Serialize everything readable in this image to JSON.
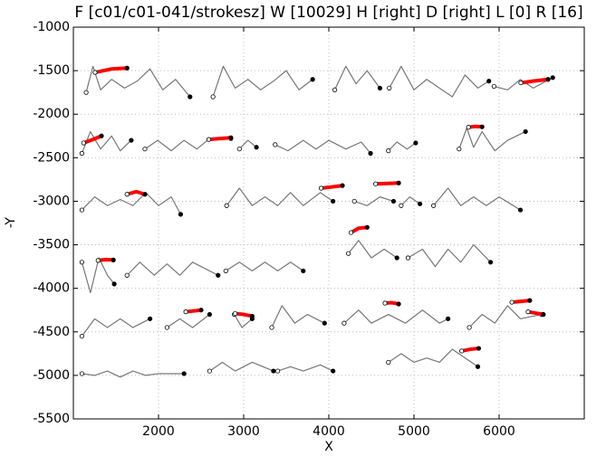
{
  "chart_data": {
    "type": "line",
    "title": "F [c01/c01-041/strokesz] W [10029] H [right] D [right] L [0] R [16]",
    "x_label": "X",
    "y_label": "-Y",
    "xlim": [
      1000,
      7000
    ],
    "ylim": [
      -5500,
      -1000
    ],
    "xticks": [
      2000,
      3000,
      4000,
      5000,
      6000
    ],
    "yticks": [
      -1000,
      -1500,
      -2000,
      -2500,
      -3000,
      -3500,
      -4000,
      -4500,
      -5000,
      -5500
    ],
    "grid": true,
    "stroke_color": "#777777",
    "highlight_color": "#ff0000",
    "strokes": [
      {
        "x": [
          1150,
          1230,
          1320,
          1450,
          1600,
          1750,
          1900,
          2050,
          2200,
          2370
        ],
        "y": [
          -1750,
          -1450,
          -1720,
          -1600,
          -1700,
          -1620,
          -1480,
          -1720,
          -1600,
          -1800
        ]
      },
      {
        "x": [
          2640,
          2760,
          2900,
          3050,
          3200,
          3350,
          3500,
          3650,
          3810
        ],
        "y": [
          -1800,
          -1450,
          -1700,
          -1600,
          -1720,
          -1620,
          -1500,
          -1720,
          -1600
        ]
      },
      {
        "x": [
          4070,
          4200,
          4320,
          4450,
          4600
        ],
        "y": [
          -1720,
          -1450,
          -1650,
          -1500,
          -1700
        ]
      },
      {
        "x": [
          4710,
          4850,
          5000,
          5150,
          5300,
          5450,
          5600,
          5750,
          5880
        ],
        "y": [
          -1700,
          -1450,
          -1720,
          -1600,
          -1700,
          -1800,
          -1550,
          -1700,
          -1620
        ]
      },
      {
        "x": [
          5940,
          6100,
          6250,
          6400,
          6630
        ],
        "y": [
          -1680,
          -1720,
          -1600,
          -1700,
          -1580
        ]
      },
      {
        "x": [
          1100,
          1200,
          1320,
          1450,
          1550,
          1680
        ],
        "y": [
          -2450,
          -2200,
          -2400,
          -2250,
          -2420,
          -2300
        ]
      },
      {
        "x": [
          1840,
          1990,
          2150,
          2300,
          2450,
          2600,
          2850
        ],
        "y": [
          -2400,
          -2300,
          -2420,
          -2300,
          -2400,
          -2280,
          -2280
        ]
      },
      {
        "x": [
          2950,
          3050,
          3150
        ],
        "y": [
          -2400,
          -2300,
          -2380
        ]
      },
      {
        "x": [
          3370,
          3520,
          3700,
          3850,
          4000,
          4200,
          4380,
          4490
        ],
        "y": [
          -2350,
          -2420,
          -2300,
          -2400,
          -2300,
          -2400,
          -2320,
          -2450
        ]
      },
      {
        "x": [
          4700,
          4800,
          4920,
          5020
        ],
        "y": [
          -2420,
          -2320,
          -2400,
          -2330
        ]
      },
      {
        "x": [
          5530,
          5620,
          5700,
          5800,
          5950,
          6100,
          6310
        ],
        "y": [
          -2400,
          -2160,
          -2380,
          -2200,
          -2420,
          -2300,
          -2200
        ]
      },
      {
        "x": [
          1100,
          1250,
          1400,
          1550,
          1700,
          1850,
          2000,
          2150,
          2260
        ],
        "y": [
          -3100,
          -2950,
          -3050,
          -2980,
          -3050,
          -2900,
          -3050,
          -2950,
          -3150
        ]
      },
      {
        "x": [
          2800,
          2950,
          3100,
          3250,
          3400,
          3550,
          3700,
          3900,
          4050
        ],
        "y": [
          -3050,
          -2850,
          -3050,
          -2950,
          -3050,
          -2900,
          -3050,
          -2900,
          -3000
        ]
      },
      {
        "x": [
          4300,
          4450,
          4600,
          4760
        ],
        "y": [
          -3000,
          -3050,
          -2950,
          -3000
        ]
      },
      {
        "x": [
          4850,
          4950,
          5070
        ],
        "y": [
          -3050,
          -2950,
          -3030
        ]
      },
      {
        "x": [
          5230,
          5400,
          5550,
          5700,
          5850,
          6000,
          6250
        ],
        "y": [
          -3050,
          -2850,
          -3050,
          -2950,
          -3050,
          -2950,
          -3100
        ]
      },
      {
        "x": [
          1100,
          1200,
          1300,
          1400,
          1480
        ],
        "y": [
          -3700,
          -4050,
          -3650,
          -3850,
          -3950
        ]
      },
      {
        "x": [
          1630,
          1780,
          1950,
          2100,
          2250,
          2400,
          2600,
          2700
        ],
        "y": [
          -3850,
          -3700,
          -3850,
          -3720,
          -3850,
          -3700,
          -3800,
          -3850
        ]
      },
      {
        "x": [
          2790,
          2950,
          3100,
          3250,
          3400,
          3550,
          3700
        ],
        "y": [
          -3800,
          -3700,
          -3800,
          -3700,
          -3800,
          -3700,
          -3800
        ]
      },
      {
        "x": [
          4230,
          4350,
          4500,
          4650,
          4800
        ],
        "y": [
          -3600,
          -3450,
          -3650,
          -3550,
          -3650
        ]
      },
      {
        "x": [
          4930,
          5100,
          5250,
          5400,
          5550,
          5700,
          5900
        ],
        "y": [
          -3650,
          -3550,
          -3750,
          -3550,
          -3700,
          -3500,
          -3700
        ]
      },
      {
        "x": [
          1100,
          1250,
          1400,
          1550,
          1700,
          1900
        ],
        "y": [
          -4550,
          -4350,
          -4450,
          -4350,
          -4450,
          -4350
        ]
      },
      {
        "x": [
          2100,
          2250,
          2400,
          2600
        ],
        "y": [
          -4450,
          -4350,
          -4450,
          -4300
        ]
      },
      {
        "x": [
          2890,
          2980,
          3100
        ],
        "y": [
          -4300,
          -4450,
          -4350
        ]
      },
      {
        "x": [
          3330,
          3450,
          3600,
          3750,
          3950
        ],
        "y": [
          -4450,
          -4200,
          -4400,
          -4300,
          -4400
        ]
      },
      {
        "x": [
          4180,
          4350,
          4500,
          4700,
          4900,
          5100,
          5300,
          5400
        ],
        "y": [
          -4400,
          -4250,
          -4400,
          -4300,
          -4400,
          -4250,
          -4400,
          -4350
        ]
      },
      {
        "x": [
          5650,
          5800,
          5950,
          6100,
          6250,
          6500
        ],
        "y": [
          -4450,
          -4300,
          -4400,
          -4200,
          -4350,
          -4300
        ]
      },
      {
        "x": [
          1100,
          1250,
          1400,
          1550,
          1700,
          1850,
          2000,
          2300
        ],
        "y": [
          -4980,
          -5000,
          -4950,
          -5020,
          -4950,
          -5000,
          -4980,
          -4980
        ]
      },
      {
        "x": [
          2600,
          2750,
          2900,
          3100,
          3350
        ],
        "y": [
          -4950,
          -4850,
          -4950,
          -4850,
          -4950
        ]
      },
      {
        "x": [
          3400,
          3550,
          3700,
          3900,
          4050
        ],
        "y": [
          -4950,
          -4900,
          -4950,
          -4880,
          -4950
        ]
      },
      {
        "x": [
          4700,
          4850,
          5000,
          5150,
          5300,
          5450,
          5600,
          5750
        ],
        "y": [
          -4850,
          -4750,
          -4850,
          -4800,
          -4850,
          -4700,
          -4800,
          -4900
        ]
      }
    ],
    "highlights": [
      {
        "x": [
          1255,
          1450,
          1630
        ],
        "y": [
          -1520,
          -1480,
          -1470
        ]
      },
      {
        "x": [
          6255,
          6400,
          6575
        ],
        "y": [
          -1640,
          -1620,
          -1600
        ]
      },
      {
        "x": [
          1120,
          1230,
          1330
        ],
        "y": [
          -2330,
          -2290,
          -2250
        ]
      },
      {
        "x": [
          2590,
          2720,
          2850
        ],
        "y": [
          -2290,
          -2280,
          -2270
        ]
      },
      {
        "x": [
          5640,
          5720,
          5800
        ],
        "y": [
          -2150,
          -2140,
          -2145
        ]
      },
      {
        "x": [
          1630,
          1740,
          1840
        ],
        "y": [
          -2920,
          -2890,
          -2920
        ]
      },
      {
        "x": [
          3910,
          4040,
          4160
        ],
        "y": [
          -2850,
          -2835,
          -2820
        ]
      },
      {
        "x": [
          4550,
          4690,
          4820
        ],
        "y": [
          -2800,
          -2795,
          -2790
        ]
      },
      {
        "x": [
          1290,
          1380,
          1470
        ],
        "y": [
          -3680,
          -3670,
          -3675
        ]
      },
      {
        "x": [
          4260,
          4350,
          4450
        ],
        "y": [
          -3360,
          -3310,
          -3300
        ]
      },
      {
        "x": [
          2320,
          2410,
          2500
        ],
        "y": [
          -4270,
          -4260,
          -4250
        ]
      },
      {
        "x": [
          2900,
          3000,
          3100
        ],
        "y": [
          -4290,
          -4300,
          -4320
        ]
      },
      {
        "x": [
          4660,
          4740,
          4820
        ],
        "y": [
          -4170,
          -4165,
          -4180
        ]
      },
      {
        "x": [
          6150,
          6250,
          6360
        ],
        "y": [
          -4160,
          -4150,
          -4140
        ]
      },
      {
        "x": [
          6340,
          6430,
          6520
        ],
        "y": [
          -4270,
          -4285,
          -4300
        ]
      },
      {
        "x": [
          5560,
          5660,
          5760
        ],
        "y": [
          -4720,
          -4700,
          -4690
        ]
      }
    ]
  }
}
